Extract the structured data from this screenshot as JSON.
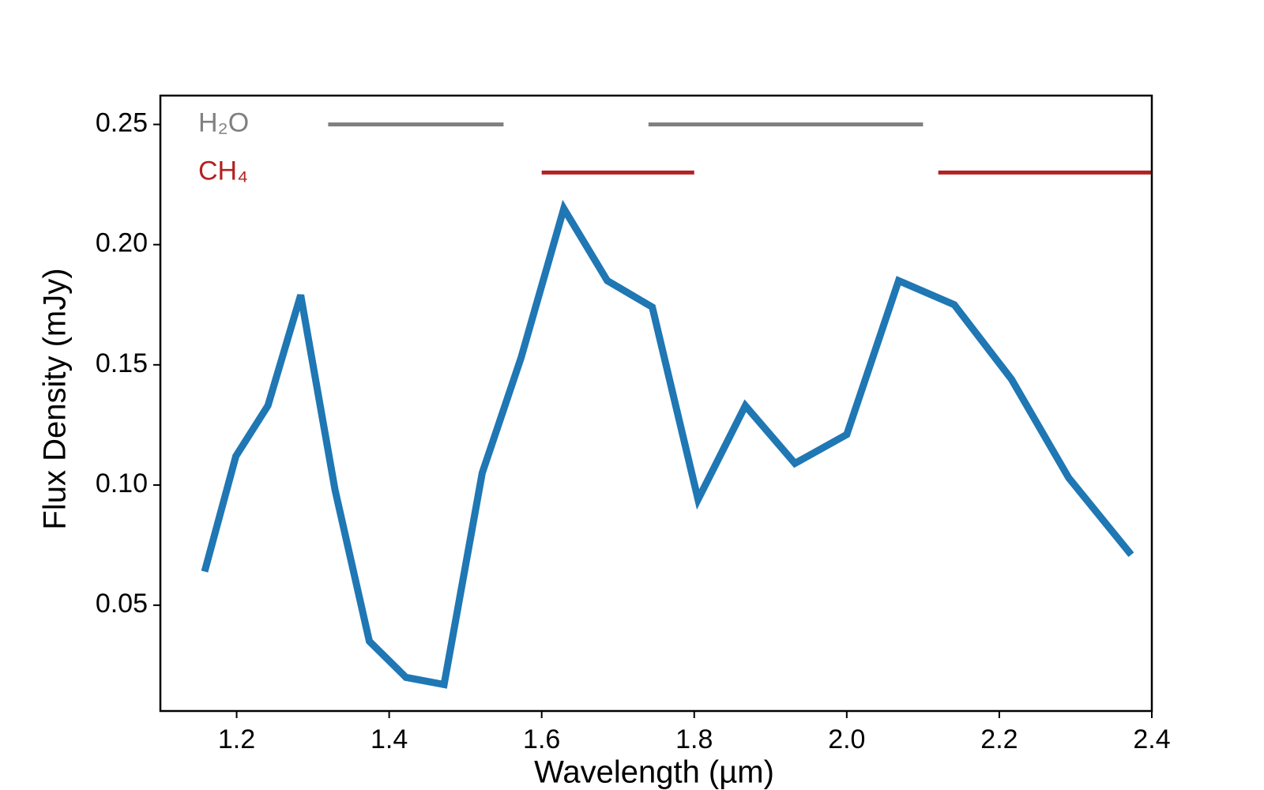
{
  "chart_data": {
    "type": "line",
    "xlabel": "Wavelength (µm)",
    "ylabel": "Flux Density (mJy)",
    "x": [
      1.158,
      1.199,
      1.241,
      1.284,
      1.329,
      1.374,
      1.422,
      1.472,
      1.522,
      1.573,
      1.629,
      1.686,
      1.745,
      1.805,
      1.867,
      1.932,
      2.0,
      2.068,
      2.141,
      2.216,
      2.291,
      2.373
    ],
    "series": [
      {
        "color": "#1f77b4",
        "values": [
          0.064,
          0.112,
          0.133,
          0.179,
          0.098,
          0.035,
          0.02,
          0.017,
          0.105,
          0.153,
          0.215,
          0.185,
          0.174,
          0.094,
          0.133,
          0.109,
          0.121,
          0.185,
          0.175,
          0.144,
          0.103,
          0.071
        ]
      }
    ],
    "bands": [
      {
        "name": "H₂O",
        "color": "#808080",
        "y": 0.25,
        "ranges": [
          [
            1.32,
            1.55
          ],
          [
            1.74,
            2.1
          ]
        ]
      },
      {
        "name": "CH₄",
        "color": "#b22222",
        "y": 0.23,
        "ranges": [
          [
            1.6,
            1.8
          ],
          [
            2.12,
            2.4
          ]
        ]
      }
    ],
    "xlim": [
      1.1,
      2.4
    ],
    "ylim": [
      0.006,
      0.262
    ],
    "xticks": [
      1.2,
      1.4,
      1.6,
      1.8,
      {
        "value": 2.0,
        "label": "2.0"
      },
      2.2,
      2.4
    ],
    "yticks": [
      0.05,
      {
        "value": 0.1,
        "label": "0.10"
      },
      0.15,
      {
        "value": 0.2,
        "label": "0.20"
      },
      0.25
    ]
  }
}
